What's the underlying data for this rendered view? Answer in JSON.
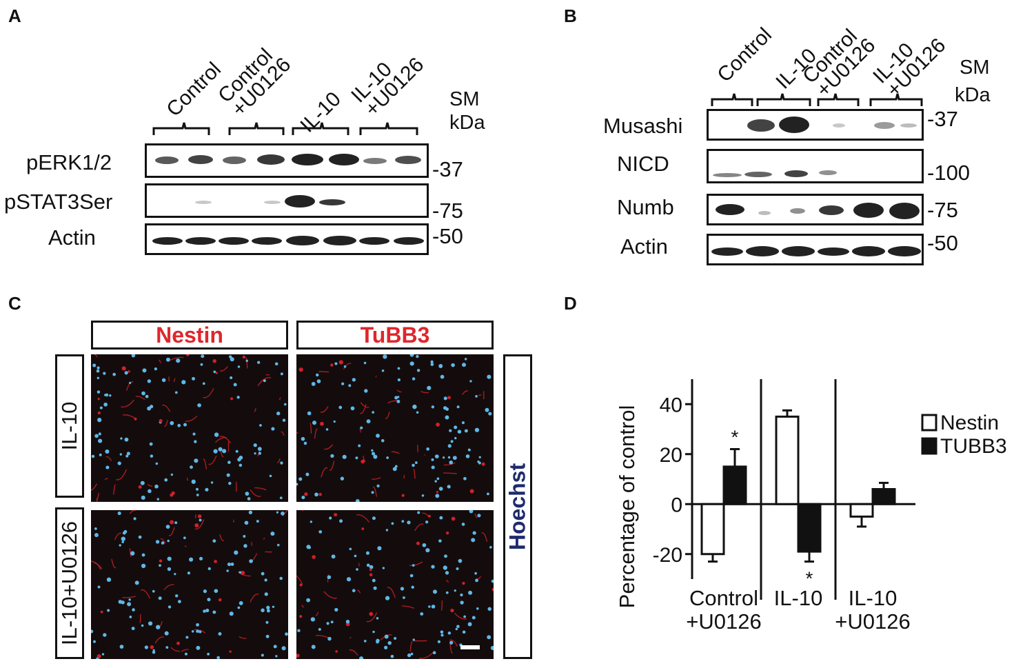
{
  "panels": {
    "A": "A",
    "B": "B",
    "C": "C",
    "D": "D"
  },
  "panelA": {
    "lanes": [
      "Control",
      "Control\n+U0126",
      "IL-10",
      "IL-10\n+U0126"
    ],
    "sm": "SM",
    "kda": "kDa",
    "rows": [
      {
        "label": "pERK1/2",
        "marker": "-37"
      },
      {
        "label": "pSTAT3Ser",
        "marker": "-75"
      },
      {
        "label": "Actin",
        "marker": "-50"
      }
    ]
  },
  "panelB": {
    "lanes": [
      "Control",
      "IL-10",
      "Control\n+U0126",
      "IL-10\n+U0126"
    ],
    "sm": "SM",
    "kda": "kDa",
    "rows": [
      {
        "label": "Musashi",
        "marker": "-37"
      },
      {
        "label": "NICD",
        "marker": "-100"
      },
      {
        "label": "Numb",
        "marker": "-75"
      },
      {
        "label": "Actin",
        "marker": "-50"
      }
    ]
  },
  "panelC": {
    "col1": "Nestin",
    "col2": "TuBB3",
    "row1": "IL-10",
    "row2": "IL-10+U0126",
    "side": "Hoechst",
    "colors": {
      "label": "#e0262c",
      "hoechst": "#1f2a6e",
      "nuclei": "#5fb8e8",
      "fibers": "#d0202a"
    }
  },
  "chart_data": {
    "type": "bar",
    "ylabel": "Percentage of control",
    "ylim": [
      -30,
      50
    ],
    "yticks": [
      -20,
      0,
      20,
      40
    ],
    "categories": [
      "Control\n+U0126",
      "IL-10",
      "IL-10\n+U0126"
    ],
    "series": [
      {
        "name": "Nestin",
        "values": [
          -20,
          35,
          -5
        ],
        "errors": [
          3,
          2.5,
          4
        ],
        "fill": "#ffffff"
      },
      {
        "name": "TUBB3",
        "values": [
          15,
          -19,
          6
        ],
        "errors": [
          7,
          4,
          2.5
        ],
        "fill": "#111111"
      }
    ],
    "significance": [
      {
        "series": "TUBB3",
        "category": "Control\n+U0126",
        "mark": "*"
      },
      {
        "series": "TUBB3",
        "category": "IL-10",
        "mark": "*"
      }
    ],
    "legend": "right"
  }
}
